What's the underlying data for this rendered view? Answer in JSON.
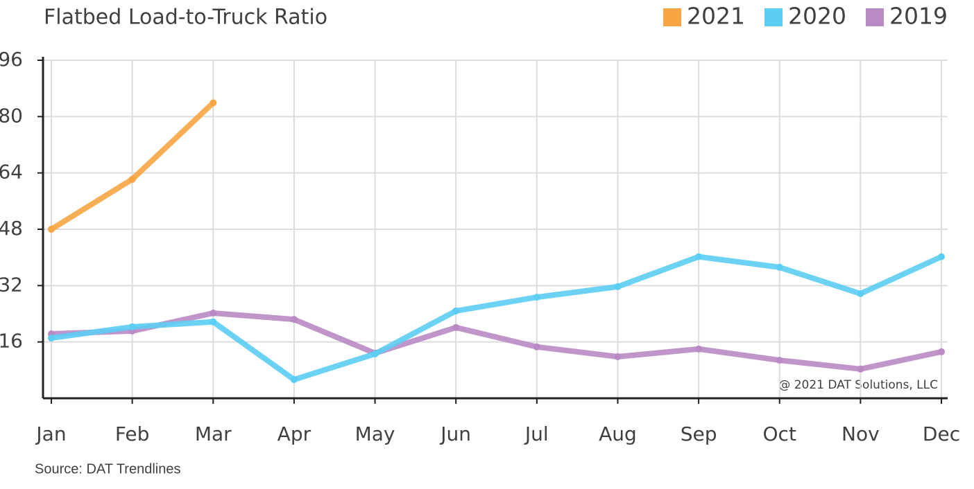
{
  "chart_data": {
    "type": "line",
    "title": "Flatbed Load-to-Truck Ratio",
    "annotation": "@ 2021 DAT Solutions, LLC",
    "source": "Source: DAT Trendlines",
    "categories": [
      "Jan",
      "Feb",
      "Mar",
      "Apr",
      "May",
      "Jun",
      "Jul",
      "Aug",
      "Sep",
      "Oct",
      "Nov",
      "Dec"
    ],
    "series": [
      {
        "name": "2021",
        "color": "#f7a543",
        "values": [
          48,
          62.2,
          83.9,
          null,
          null,
          null,
          null,
          null,
          null,
          null,
          null,
          null
        ]
      },
      {
        "name": "2020",
        "color": "#5ccdf3",
        "values": [
          17.1,
          20.3,
          21.7,
          5.3,
          12.6,
          24.8,
          28.7,
          31.7,
          40.2,
          37.2,
          29.7,
          40.2
        ]
      },
      {
        "name": "2019",
        "color": "#b98ac4",
        "values": [
          18.3,
          19.1,
          24.2,
          22.4,
          12.8,
          20.1,
          14.6,
          11.8,
          14.0,
          10.8,
          8.3,
          13.2
        ]
      }
    ],
    "ylim": [
      0,
      96
    ],
    "yticks": [
      16,
      32,
      48,
      64,
      80,
      96
    ],
    "grid": true,
    "legend": "top-right"
  }
}
